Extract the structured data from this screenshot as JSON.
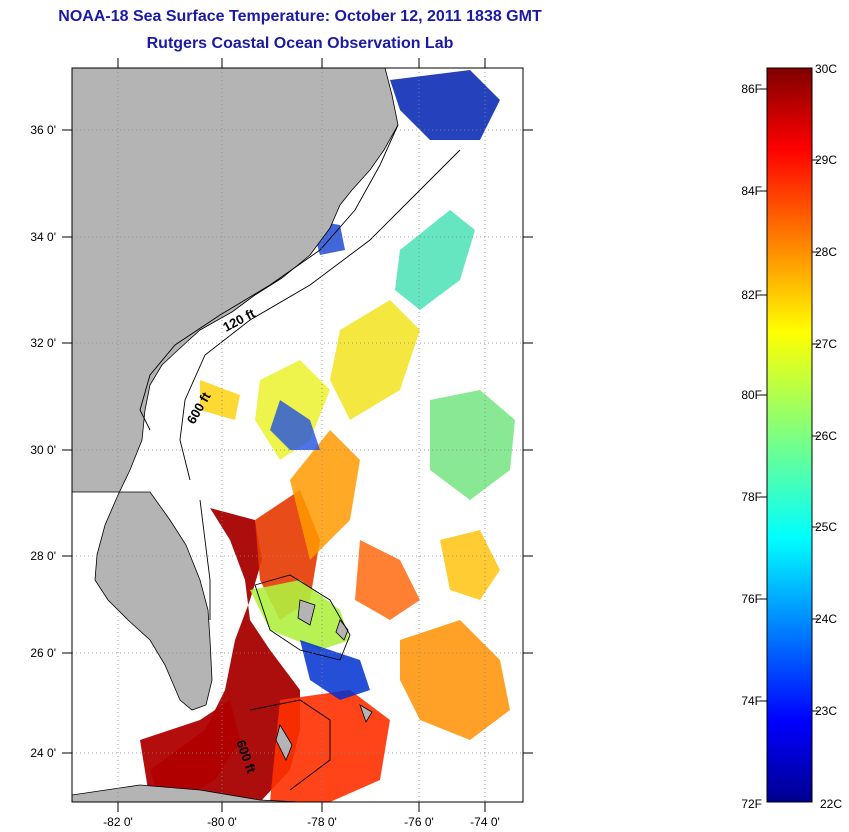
{
  "title": {
    "line1": "NOAA-18 Sea Surface Temperature:  October 12, 2011 1838 GMT",
    "line2": "Rutgers Coastal Ocean Observation Lab"
  },
  "map": {
    "lat_ticks": [
      "24 0'",
      "26 0'",
      "28 0'",
      "30 0'",
      "32 0'",
      "34 0'",
      "36 0'"
    ],
    "lon_ticks": [
      "-82 0'",
      "-80 0'",
      "-78 0'",
      "-76 0'",
      "-74 0'"
    ],
    "depth_labels": [
      "120 ft",
      "600 ft",
      "600 ft"
    ],
    "land_color": "#b4b4b4",
    "no_data_color": "#ffffff"
  },
  "colorbar": {
    "celsius_labels": [
      "30C",
      "29C",
      "28C",
      "27C",
      "26C",
      "25C",
      "24C",
      "23C",
      "22C"
    ],
    "fahrenheit_labels": [
      "86F",
      "84F",
      "82F",
      "80F",
      "78F",
      "76F",
      "74F",
      "72F"
    ],
    "range_c": [
      22,
      30
    ],
    "colormap": "jet"
  }
}
